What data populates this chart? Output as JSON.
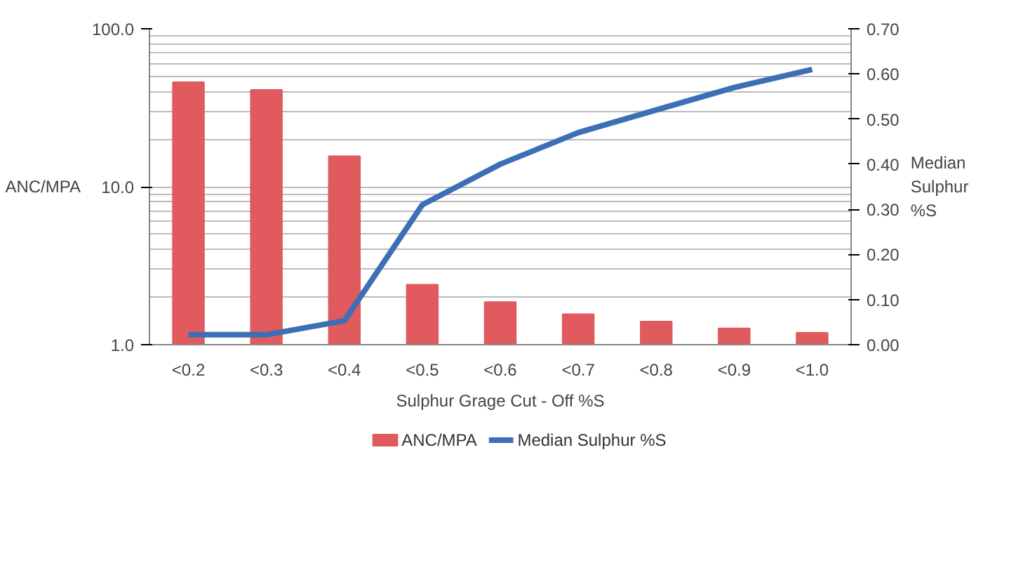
{
  "chart_data": {
    "type": "bar",
    "categories": [
      "<0.2",
      "<0.3",
      "<0.4",
      "<0.5",
      "<0.6",
      "<0.7",
      "<0.8",
      "<0.9",
      "<1.0"
    ],
    "xlabel": "Sulphur Grage Cut - Off %S",
    "ylabel": "ANC/MPA",
    "y2label": "Median\nSulphur\n%S",
    "log": "y",
    "ylim": [
      1,
      100
    ],
    "yticks": [
      {
        "value": 1,
        "label": "1.0"
      },
      {
        "value": 10,
        "label": "10.0"
      },
      {
        "value": 100,
        "label": "100.0"
      }
    ],
    "y2lim": [
      0,
      0.7
    ],
    "y2ticks": [
      {
        "value": 0,
        "label": "0.00"
      },
      {
        "value": 0.1,
        "label": "0.10"
      },
      {
        "value": 0.2,
        "label": "0.20"
      },
      {
        "value": 0.3,
        "label": "0.30"
      },
      {
        "value": 0.4,
        "label": "0.40"
      },
      {
        "value": 0.5,
        "label": "0.50"
      },
      {
        "value": 0.6,
        "label": "0.60"
      },
      {
        "value": 0.7,
        "label": "0.70"
      }
    ],
    "grid": "y",
    "legend": "bottom",
    "series": [
      {
        "name": "ANC/MPA",
        "type": "bar",
        "color": "#e05a5e",
        "values": [
          46,
          41,
          15.6,
          2.4,
          1.86,
          1.56,
          1.4,
          1.27,
          1.19
        ]
      },
      {
        "name": "Median Sulphur %S",
        "type": "line",
        "axis": "y2",
        "color": "#3d6fb6",
        "line_style": "solid",
        "values": [
          0.022,
          0.022,
          0.053,
          0.31,
          0.4,
          0.47,
          0.52,
          0.57,
          0.61
        ]
      }
    ]
  }
}
